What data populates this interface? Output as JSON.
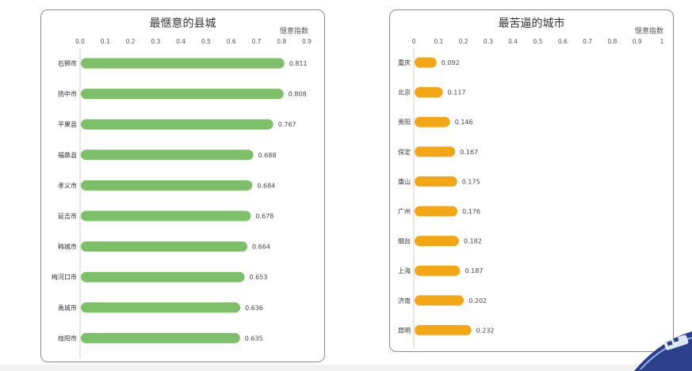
{
  "chart_data": [
    {
      "type": "bar",
      "orientation": "horizontal",
      "title": "最惬意的县城",
      "xlabel": "惬意指数",
      "categories": [
        "石狮市",
        "扬中市",
        "平果县",
        "福鼎县",
        "孝义市",
        "延吉市",
        "韩城市",
        "梅河口市",
        "禹城市",
        "桂阳市"
      ],
      "values": [
        0.811,
        0.808,
        0.767,
        0.688,
        0.684,
        0.678,
        0.664,
        0.653,
        0.636,
        0.635
      ],
      "value_labels": [
        "0.811",
        "0.808",
        "0.767",
        "0.688",
        "0.684",
        "0.678",
        "0.664",
        "0.653",
        "0.636",
        "0.635"
      ],
      "xlim": [
        0,
        0.9
      ],
      "ticks": [
        "0.0",
        "0.1",
        "0.2",
        "0.3",
        "0.4",
        "0.5",
        "0.6",
        "0.7",
        "0.8",
        "0.9"
      ],
      "bar_color": "#7ec06a",
      "grid": false
    },
    {
      "type": "bar",
      "orientation": "horizontal",
      "title": "最苦逼的城市",
      "xlabel": "惬意指数",
      "categories": [
        "重庆",
        "北京",
        "贵阳",
        "保定",
        "唐山",
        "广州",
        "烟台",
        "上海",
        "济南",
        "昆明"
      ],
      "values": [
        0.092,
        0.117,
        0.146,
        0.167,
        0.175,
        0.176,
        0.182,
        0.187,
        0.202,
        0.232
      ],
      "value_labels": [
        "0.092",
        "0.117",
        "0.146",
        "0.167",
        "0.175",
        "0.176",
        "0.182",
        "0.187",
        "0.202",
        "0.232"
      ],
      "xlim": [
        0,
        1
      ],
      "ticks": [
        "0",
        "0.1",
        "0.2",
        "0.3",
        "0.4",
        "0.5",
        "0.6",
        "0.7",
        "0.8",
        "0.9",
        "1"
      ],
      "bar_color": "#f4a716",
      "grid": false
    }
  ],
  "decoration": {
    "icon": "train-corner-icon",
    "color": "#2b3f8a"
  }
}
